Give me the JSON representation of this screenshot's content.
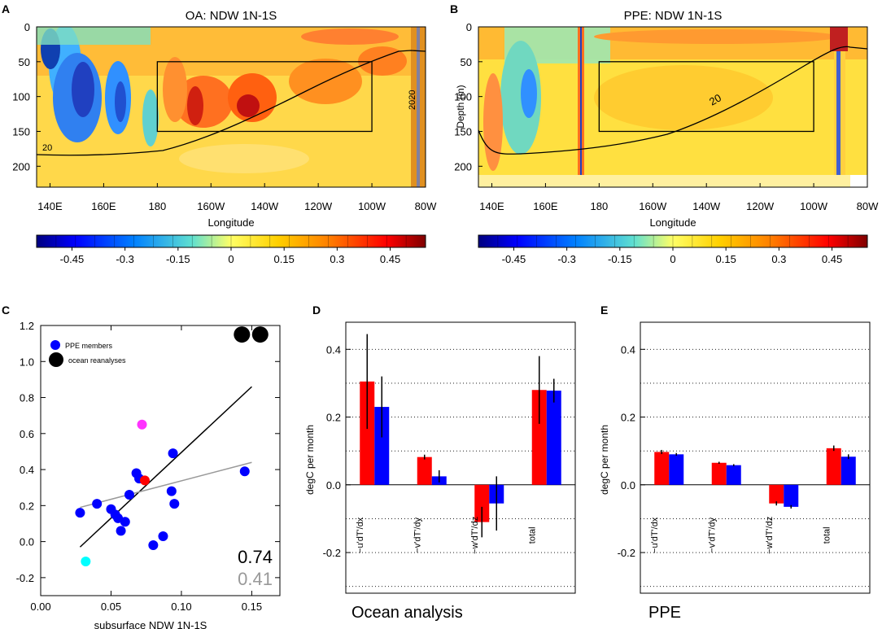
{
  "panels": {
    "A": {
      "letter": "A",
      "title": "OA: NDW 1N-1S"
    },
    "B": {
      "letter": "B",
      "title": "PPE: NDW 1N-1S"
    },
    "C": {
      "letter": "C"
    },
    "D": {
      "letter": "D",
      "footer": "Ocean analysis"
    },
    "E": {
      "letter": "E",
      "footer": "PPE"
    }
  },
  "colors": {
    "red": "#ff0000",
    "blue": "#0000ff",
    "magenta": "#ff33ff",
    "cyan": "#00ffff",
    "grey": "#999999",
    "black": "#000000"
  },
  "chart_data": [
    {
      "type": "heatmap",
      "panel": "A",
      "title": "OA: NDW 1N-1S",
      "xlabel": "Longitude",
      "ylabel": "",
      "xticks": [
        "140E",
        "160E",
        "180",
        "160W",
        "140W",
        "120W",
        "100W",
        "80W"
      ],
      "yticks": [
        "0",
        "50",
        "100",
        "150",
        "200"
      ],
      "ylim": [
        0,
        230
      ],
      "box": {
        "lon": [
          180,
          260
        ],
        "depth": [
          50,
          150
        ]
      },
      "contour_label": "20",
      "contour_label_2": "2020",
      "colorbar_ticks": [
        "-0.45",
        "-0.3",
        "-0.15",
        "0",
        "0.15",
        "0.3",
        "0.45"
      ]
    },
    {
      "type": "heatmap",
      "panel": "B",
      "title": "PPE: NDW 1N-1S",
      "xlabel": "Longitude",
      "ylabel": "Depth (m)",
      "xticks": [
        "140E",
        "160E",
        "180",
        "160W",
        "140W",
        "120W",
        "100W",
        "80W"
      ],
      "yticks": [
        "0",
        "50",
        "100",
        "150",
        "200"
      ],
      "ylim": [
        0,
        230
      ],
      "box": {
        "lon": [
          180,
          260
        ],
        "depth": [
          50,
          150
        ]
      },
      "contour_label": "20",
      "colorbar_ticks": [
        "-0.45",
        "-0.3",
        "-0.15",
        "0",
        "0.15",
        "0.3",
        "0.45"
      ]
    },
    {
      "type": "scatter",
      "panel": "C",
      "xlabel": "subsurface NDW 1N-1S",
      "xlim": [
        0,
        0.17
      ],
      "ylim": [
        -0.3,
        1.2
      ],
      "xticks": [
        "0.00",
        "0.05",
        "0.10",
        "0.15"
      ],
      "yticks": [
        "-0.2",
        "0.0",
        "0.2",
        "0.4",
        "0.6",
        "0.8",
        "1.0",
        "1.2"
      ],
      "legend": [
        {
          "label": "PPE members",
          "color": "#0000ff"
        },
        {
          "label": "ocean reanalyses",
          "color": "#000000"
        }
      ],
      "ppe_members": [
        [
          0.028,
          0.16
        ],
        [
          0.04,
          0.21
        ],
        [
          0.05,
          0.18
        ],
        [
          0.053,
          0.15
        ],
        [
          0.055,
          0.13
        ],
        [
          0.057,
          0.06
        ],
        [
          0.06,
          0.11
        ],
        [
          0.063,
          0.26
        ],
        [
          0.068,
          0.38
        ],
        [
          0.07,
          0.35
        ],
        [
          0.08,
          -0.02
        ],
        [
          0.087,
          0.03
        ],
        [
          0.093,
          0.28
        ],
        [
          0.095,
          0.21
        ],
        [
          0.094,
          0.49
        ],
        [
          0.145,
          0.39
        ]
      ],
      "highlight_points": [
        {
          "x": 0.072,
          "y": 0.65,
          "color": "#ff33ff"
        },
        {
          "x": 0.074,
          "y": 0.34,
          "color": "#ff0000"
        },
        {
          "x": 0.032,
          "y": -0.11,
          "color": "#00ffff"
        }
      ],
      "reanalyses": [
        [
          0.143,
          1.15
        ],
        [
          0.156,
          1.15
        ]
      ],
      "fit_lines": [
        {
          "color": "#000000",
          "x": [
            0.028,
            0.15
          ],
          "y": [
            -0.03,
            0.86
          ],
          "r": "0.74"
        },
        {
          "color": "#999999",
          "x": [
            0.028,
            0.15
          ],
          "y": [
            0.19,
            0.44
          ],
          "r": "0.41"
        }
      ]
    },
    {
      "type": "bar",
      "panel": "D",
      "ylabel": "degC per month",
      "ylim": [
        -0.32,
        0.48
      ],
      "yticks": [
        "-0.2",
        "0.0",
        "0.2",
        "0.4"
      ],
      "categories": [
        "−u'dT'/dx",
        "−v'dT'/dy",
        "−w'dT'/dz",
        "total"
      ],
      "series": [
        {
          "name": "red",
          "color": "#ff0000",
          "values": [
            0.305,
            0.082,
            -0.11,
            0.28
          ],
          "err": [
            0.14,
            0.007,
            0.045,
            0.1
          ]
        },
        {
          "name": "blue",
          "color": "#0000ff",
          "values": [
            0.23,
            0.025,
            -0.055,
            0.278
          ],
          "err": [
            0.09,
            0.018,
            0.08,
            0.035
          ]
        }
      ],
      "footer": "Ocean analysis"
    },
    {
      "type": "bar",
      "panel": "E",
      "ylabel": "degC per month",
      "ylim": [
        -0.32,
        0.48
      ],
      "yticks": [
        "-0.2",
        "0.0",
        "0.2",
        "0.4"
      ],
      "categories": [
        "−u'dT'/dx",
        "−v'dT'/dy",
        "−w'dT'/dz",
        "total"
      ],
      "series": [
        {
          "name": "red",
          "color": "#ff0000",
          "values": [
            0.097,
            0.065,
            -0.055,
            0.108
          ],
          "err": [
            0.006,
            0.003,
            0.006,
            0.008
          ]
        },
        {
          "name": "blue",
          "color": "#0000ff",
          "values": [
            0.09,
            0.058,
            -0.065,
            0.083
          ],
          "err": [
            0.004,
            0.003,
            0.005,
            0.007
          ]
        }
      ],
      "footer": "PPE"
    }
  ]
}
